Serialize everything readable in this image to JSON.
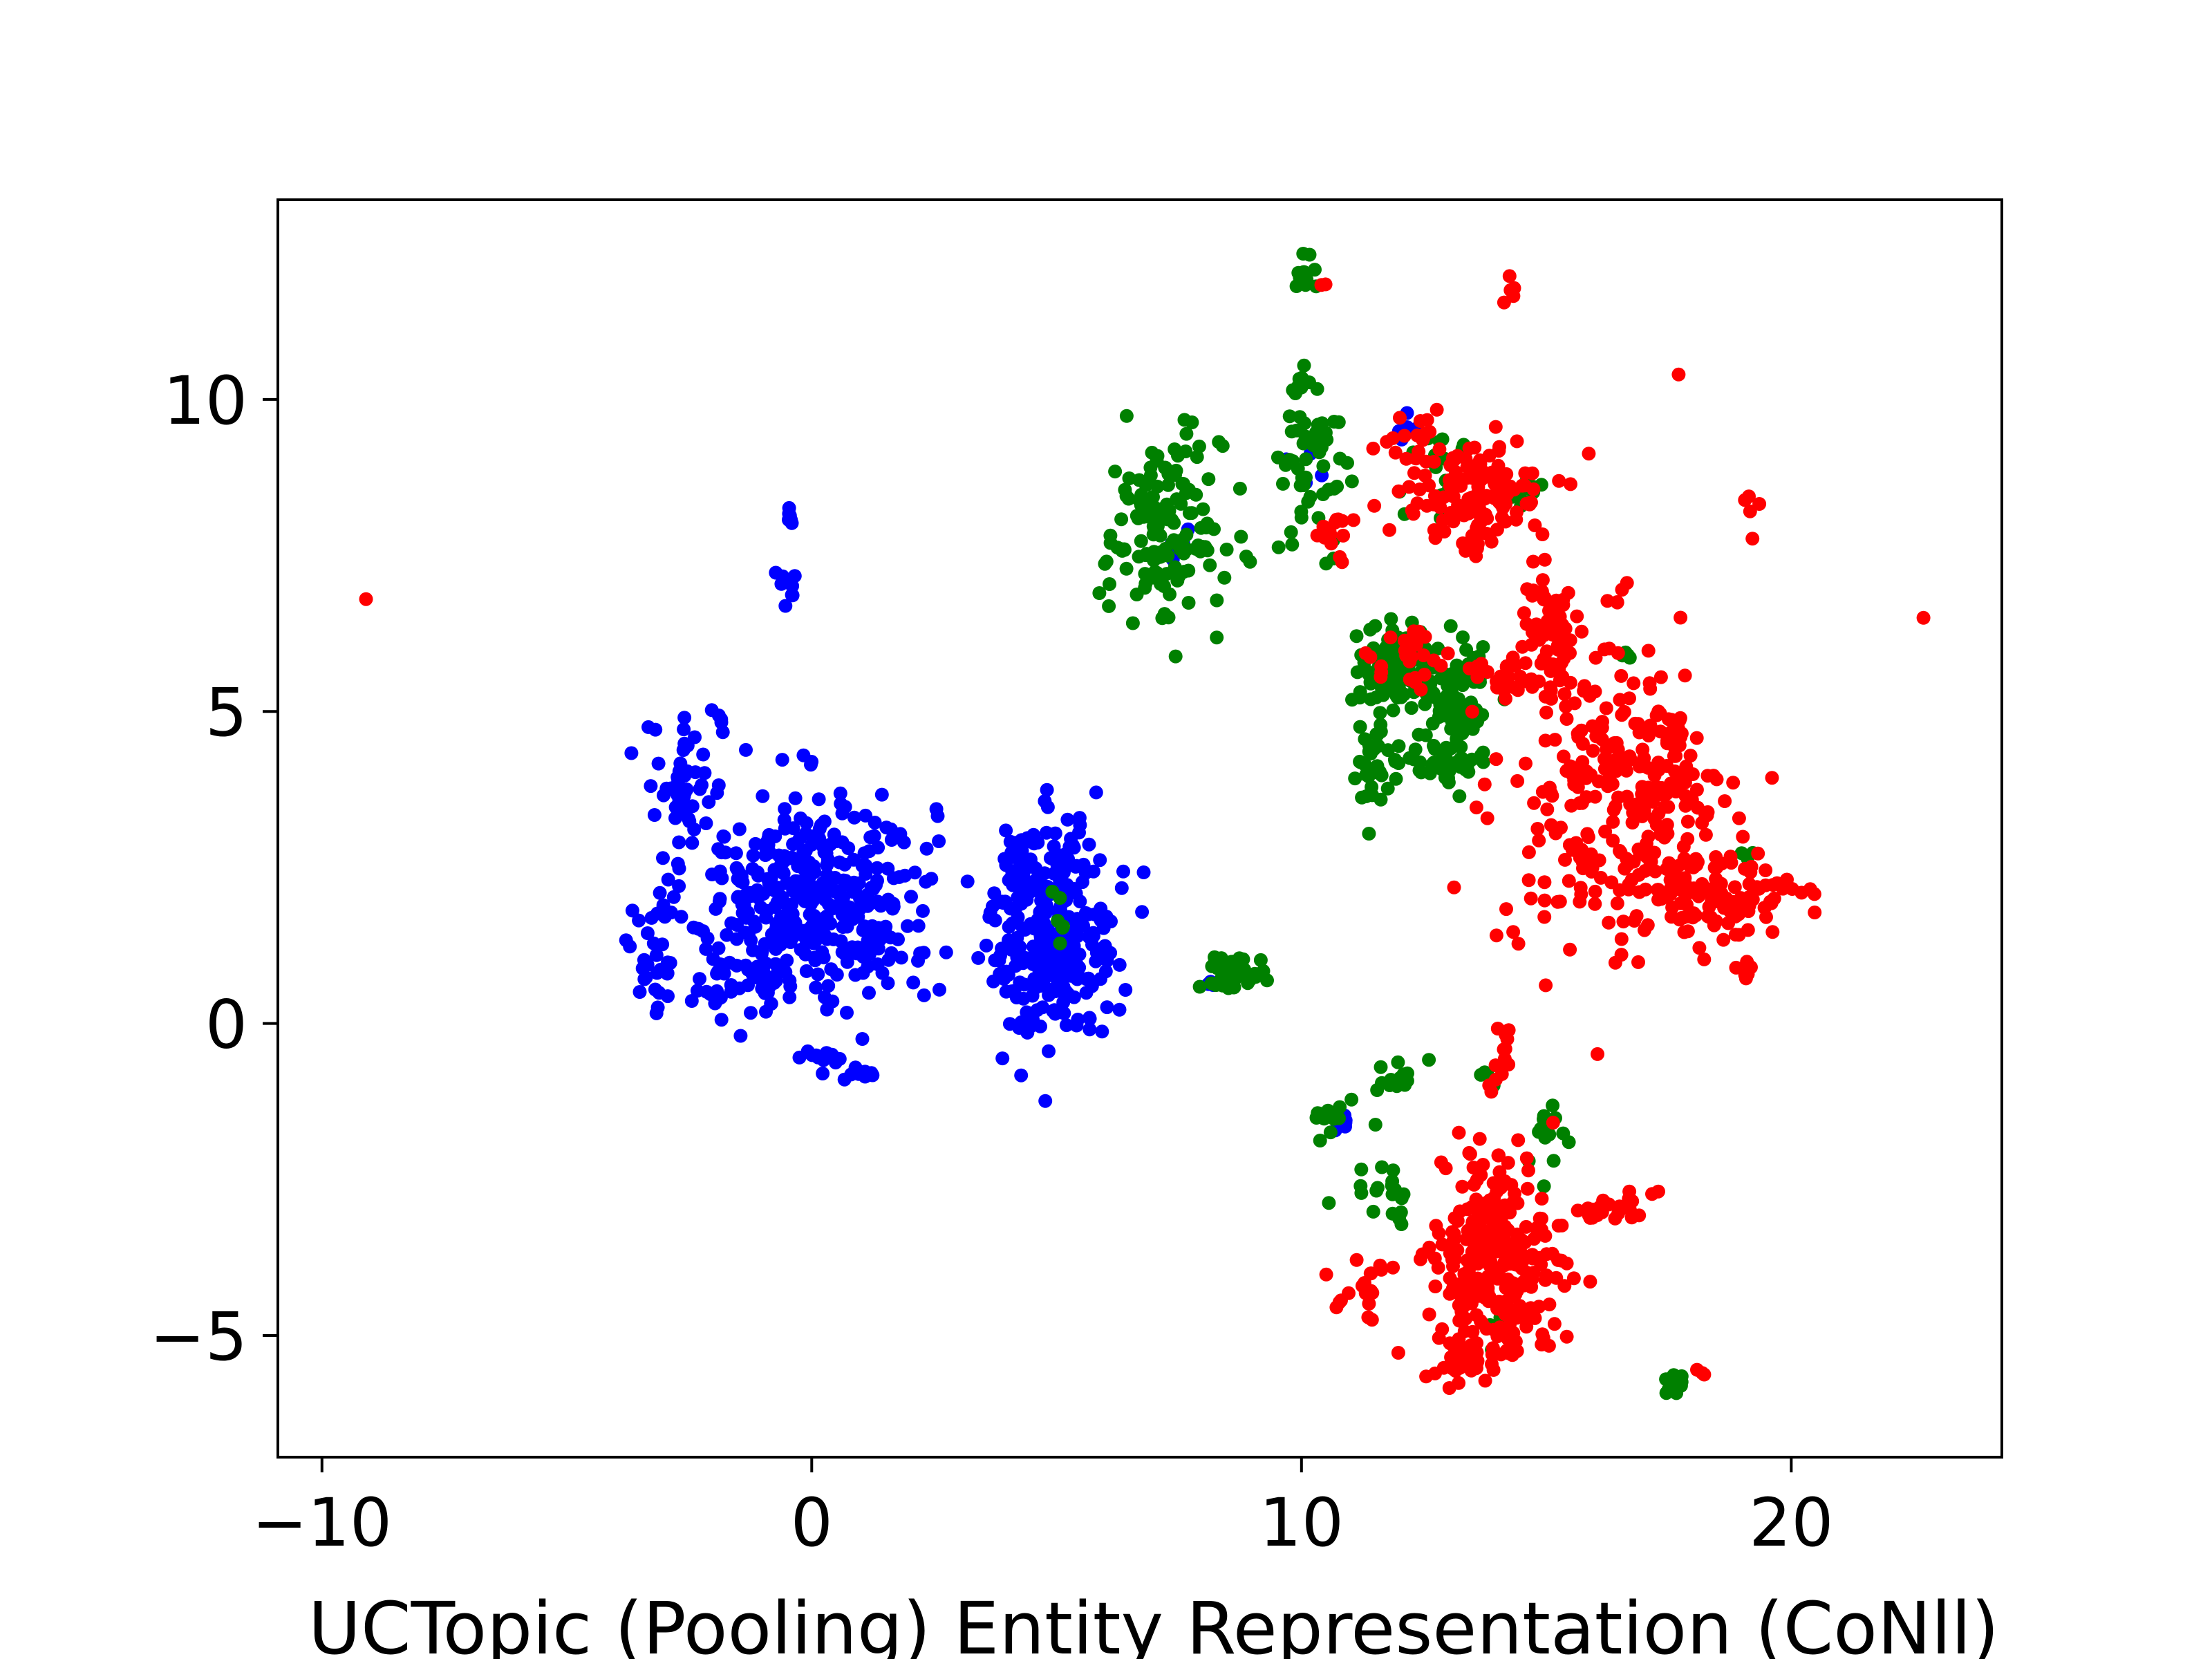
{
  "chart_data": {
    "type": "scatter",
    "title": "",
    "xlabel": "UCTopic (Pooling) Entity Representation (CoNll)",
    "ylabel": "",
    "xlim": [
      -10.9,
      24.3
    ],
    "ylim": [
      -6.95,
      13.2
    ],
    "xticks": [
      -10,
      0,
      10,
      20
    ],
    "yticks": [
      -5,
      0,
      5,
      10
    ],
    "x_tick_labels": [
      "−10",
      "0",
      "10",
      "20"
    ],
    "y_tick_labels": [
      "−5",
      "0",
      "5",
      "10"
    ],
    "grid": false,
    "legend": "none",
    "colors": {
      "blue": "#0000ff",
      "green": "#008000",
      "red": "#ff0000"
    },
    "series": [
      {
        "color": "#0000ff",
        "clusters": [
          {
            "x": 0.0,
            "y": 2.0,
            "sx": 1.25,
            "sy": 0.85,
            "n": 420
          },
          {
            "x": -2.6,
            "y": 3.8,
            "sx": 0.4,
            "sy": 0.5,
            "n": 45
          },
          {
            "x": -1.9,
            "y": 4.8,
            "sx": 0.1,
            "sy": 0.1,
            "n": 5
          },
          {
            "x": -3.2,
            "y": 1.0,
            "sx": 0.25,
            "sy": 0.45,
            "n": 25
          },
          {
            "x": -1.5,
            "y": 0.6,
            "sx": 0.6,
            "sy": 0.2,
            "n": 25
          },
          {
            "x": 0.2,
            "y": -0.55,
            "sx": 0.3,
            "sy": 0.06,
            "n": 14
          },
          {
            "x": 0.95,
            "y": -0.8,
            "sx": 0.25,
            "sy": 0.06,
            "n": 12
          },
          {
            "x": -0.5,
            "y": 7.0,
            "sx": 0.15,
            "sy": 0.15,
            "n": 10
          },
          {
            "x": -0.45,
            "y": 8.1,
            "sx": 0.04,
            "sy": 0.12,
            "n": 6
          },
          {
            "x": 4.9,
            "y": 1.55,
            "sx": 0.65,
            "sy": 0.85,
            "n": 300
          },
          {
            "x": 7.4,
            "y": 7.6,
            "sx": 0.2,
            "sy": 0.4,
            "n": 6
          },
          {
            "x": 10.1,
            "y": 8.7,
            "sx": 0.2,
            "sy": 0.3,
            "n": 4
          },
          {
            "x": 12.1,
            "y": 9.5,
            "sx": 0.15,
            "sy": 0.1,
            "n": 5
          },
          {
            "x": 10.9,
            "y": -1.6,
            "sx": 0.3,
            "sy": 0.1,
            "n": 5
          },
          {
            "x": 8.2,
            "y": 0.65,
            "sx": 0.1,
            "sy": 0.05,
            "n": 3
          }
        ]
      },
      {
        "color": "#008000",
        "clusters": [
          {
            "x": 7.2,
            "y": 7.9,
            "sx": 0.6,
            "sy": 0.75,
            "n": 150
          },
          {
            "x": 10.3,
            "y": 9.0,
            "sx": 0.35,
            "sy": 0.6,
            "n": 55
          },
          {
            "x": 10.0,
            "y": 12.0,
            "sx": 0.15,
            "sy": 0.15,
            "n": 12
          },
          {
            "x": 10.0,
            "y": 10.2,
            "sx": 0.08,
            "sy": 0.2,
            "n": 8
          },
          {
            "x": 11.9,
            "y": 5.7,
            "sx": 0.35,
            "sy": 0.3,
            "n": 120
          },
          {
            "x": 13.1,
            "y": 5.2,
            "sx": 0.4,
            "sy": 0.5,
            "n": 90
          },
          {
            "x": 11.5,
            "y": 4.1,
            "sx": 0.25,
            "sy": 0.35,
            "n": 40
          },
          {
            "x": 13.0,
            "y": 4.1,
            "sx": 0.4,
            "sy": 0.15,
            "n": 30
          },
          {
            "x": 8.6,
            "y": 0.8,
            "sx": 0.35,
            "sy": 0.15,
            "n": 40
          },
          {
            "x": 12.8,
            "y": 8.9,
            "sx": 0.5,
            "sy": 0.35,
            "n": 20
          },
          {
            "x": 14.6,
            "y": 8.5,
            "sx": 0.2,
            "sy": 0.1,
            "n": 10
          },
          {
            "x": 12.0,
            "y": -0.8,
            "sx": 0.25,
            "sy": 0.15,
            "n": 15
          },
          {
            "x": 10.7,
            "y": -1.5,
            "sx": 0.3,
            "sy": 0.15,
            "n": 15
          },
          {
            "x": 11.8,
            "y": -2.7,
            "sx": 0.3,
            "sy": 0.2,
            "n": 20
          },
          {
            "x": 15.0,
            "y": -2.0,
            "sx": 0.15,
            "sy": 0.25,
            "n": 15
          },
          {
            "x": 13.8,
            "y": -0.8,
            "sx": 0.1,
            "sy": 0.1,
            "n": 5
          },
          {
            "x": 17.5,
            "y": -5.8,
            "sx": 0.15,
            "sy": 0.12,
            "n": 15
          },
          {
            "x": 16.6,
            "y": 5.9,
            "sx": 0.1,
            "sy": 0.1,
            "n": 5
          },
          {
            "x": 19.2,
            "y": 2.7,
            "sx": 0.1,
            "sy": 0.05,
            "n": 3
          },
          {
            "x": 5.0,
            "y": 1.8,
            "sx": 0.3,
            "sy": 0.3,
            "n": 6
          },
          {
            "x": 14.1,
            "y": -4.8,
            "sx": 0.3,
            "sy": 0.3,
            "n": 4
          }
        ]
      },
      {
        "color": "#ff0000",
        "clusters": [
          {
            "x": -9.1,
            "y": 6.8,
            "sx": 0.0,
            "sy": 0.0,
            "n": 1
          },
          {
            "x": 22.7,
            "y": 6.5,
            "sx": 0.0,
            "sy": 0.0,
            "n": 1
          },
          {
            "x": 17.7,
            "y": 10.4,
            "sx": 0.0,
            "sy": 0.0,
            "n": 1
          },
          {
            "x": 14.3,
            "y": 11.7,
            "sx": 0.1,
            "sy": 0.15,
            "n": 5
          },
          {
            "x": 10.4,
            "y": 11.8,
            "sx": 0.1,
            "sy": 0.05,
            "n": 2
          },
          {
            "x": 19.1,
            "y": 8.2,
            "sx": 0.1,
            "sy": 0.3,
            "n": 5
          },
          {
            "x": 13.5,
            "y": 8.5,
            "sx": 0.75,
            "sy": 0.45,
            "n": 130
          },
          {
            "x": 15.1,
            "y": 6.3,
            "sx": 0.3,
            "sy": 0.6,
            "n": 60
          },
          {
            "x": 14.2,
            "y": 5.6,
            "sx": 0.55,
            "sy": 0.25,
            "n": 40
          },
          {
            "x": 16.6,
            "y": 3.4,
            "sx": 1.15,
            "sy": 1.2,
            "n": 300
          },
          {
            "x": 18.6,
            "y": 2.0,
            "sx": 0.8,
            "sy": 0.35,
            "n": 90
          },
          {
            "x": 19.1,
            "y": 0.8,
            "sx": 0.1,
            "sy": 0.1,
            "n": 6
          },
          {
            "x": 16.5,
            "y": 6.9,
            "sx": 0.1,
            "sy": 0.1,
            "n": 4
          },
          {
            "x": 12.3,
            "y": 5.9,
            "sx": 0.4,
            "sy": 0.3,
            "n": 25
          },
          {
            "x": 10.7,
            "y": 7.9,
            "sx": 0.3,
            "sy": 0.25,
            "n": 15
          },
          {
            "x": 14.0,
            "y": -3.8,
            "sx": 0.6,
            "sy": 0.8,
            "n": 280
          },
          {
            "x": 13.3,
            "y": -5.3,
            "sx": 0.4,
            "sy": 0.25,
            "n": 30
          },
          {
            "x": 11.3,
            "y": -4.2,
            "sx": 0.25,
            "sy": 0.3,
            "n": 20
          },
          {
            "x": 16.3,
            "y": -3.0,
            "sx": 0.45,
            "sy": 0.15,
            "n": 25
          },
          {
            "x": 14.2,
            "y": -0.3,
            "sx": 0.1,
            "sy": 0.25,
            "n": 8
          },
          {
            "x": 18.2,
            "y": -5.6,
            "sx": 0.08,
            "sy": 0.05,
            "n": 3
          },
          {
            "x": 12.2,
            "y": 9.5,
            "sx": 0.3,
            "sy": 0.2,
            "n": 15
          },
          {
            "x": 13.9,
            "y": -0.9,
            "sx": 0.15,
            "sy": 0.15,
            "n": 5
          }
        ]
      }
    ]
  }
}
